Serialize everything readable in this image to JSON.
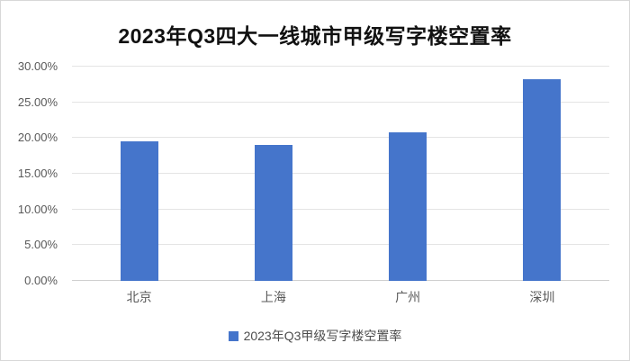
{
  "chart_data": {
    "type": "bar",
    "title": "2023年Q3四大一线城市甲级写字楼空置率",
    "categories": [
      "北京",
      "上海",
      "广州",
      "深圳"
    ],
    "series": [
      {
        "name": "2023年Q3甲级写字楼空置率",
        "values": [
          19.5,
          19.0,
          20.8,
          28.3
        ]
      }
    ],
    "xlabel": "",
    "ylabel": "",
    "ylim": [
      0,
      30
    ],
    "grid": true,
    "legend_position": "bottom",
    "y_ticks": [
      {
        "value": 0,
        "label": "0.00%"
      },
      {
        "value": 5,
        "label": "5.00%"
      },
      {
        "value": 10,
        "label": "10.00%"
      },
      {
        "value": 15,
        "label": "15.00%"
      },
      {
        "value": 20,
        "label": "20.00%"
      },
      {
        "value": 25,
        "label": "25.00%"
      },
      {
        "value": 30,
        "label": "30.00%"
      }
    ],
    "colors": {
      "bar": "#4575CB",
      "gridline": "#e4e4e4",
      "axis_line": "#cfcfcf",
      "tick_label": "#595959",
      "title": "#111111"
    }
  }
}
